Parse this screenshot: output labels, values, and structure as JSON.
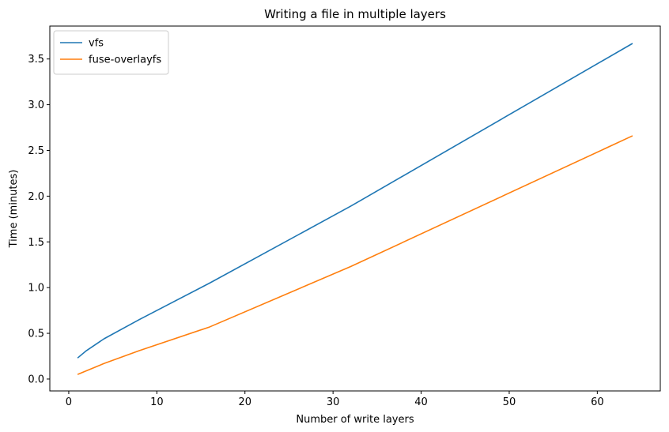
{
  "chart_data": {
    "type": "line",
    "title": "Writing a file in multiple layers",
    "xlabel": "Number of write layers",
    "ylabel": "Time (minutes)",
    "x": [
      1,
      2,
      4,
      8,
      16,
      32,
      64
    ],
    "series": [
      {
        "name": "vfs",
        "color": "#1f77b4",
        "values": [
          0.23,
          0.31,
          0.44,
          0.65,
          1.05,
          1.89,
          3.67
        ]
      },
      {
        "name": "fuse-overlayfs",
        "color": "#ff7f0e",
        "values": [
          0.05,
          0.09,
          0.17,
          0.31,
          0.57,
          1.23,
          2.66
        ]
      }
    ],
    "xlim": [
      -2.15,
      67.15
    ],
    "ylim": [
      -0.13,
      3.86
    ],
    "xticks": [
      0,
      10,
      20,
      30,
      40,
      50,
      60
    ],
    "xtick_labels": [
      "0",
      "10",
      "20",
      "30",
      "40",
      "50",
      "60"
    ],
    "yticks": [
      0.0,
      0.5,
      1.0,
      1.5,
      2.0,
      2.5,
      3.0,
      3.5
    ],
    "ytick_labels": [
      "0.0",
      "0.5",
      "1.0",
      "1.5",
      "2.0",
      "2.5",
      "3.0",
      "3.5"
    ],
    "grid": false,
    "legend_position": "top-left"
  }
}
